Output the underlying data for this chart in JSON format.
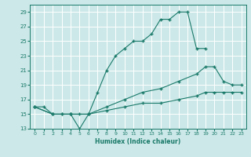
{
  "xlabel": "Humidex (Indice chaleur)",
  "bg_color": "#cce8e8",
  "grid_color": "#ffffff",
  "line_color": "#1a7a6a",
  "xlim": [
    -0.5,
    23.5
  ],
  "ylim": [
    13,
    30
  ],
  "yticks": [
    13,
    15,
    17,
    19,
    21,
    23,
    25,
    27,
    29
  ],
  "xticks": [
    0,
    1,
    2,
    3,
    4,
    5,
    6,
    7,
    8,
    9,
    10,
    11,
    12,
    13,
    14,
    15,
    16,
    17,
    18,
    19,
    20,
    21,
    22,
    23
  ],
  "line1_x": [
    0,
    1,
    2,
    3,
    4,
    5,
    6,
    7,
    8,
    9,
    10,
    11,
    12,
    13,
    14,
    15,
    16,
    17,
    18,
    19
  ],
  "line1_y": [
    16,
    16,
    15,
    15,
    15,
    13,
    15,
    18,
    21,
    23,
    24,
    25,
    25,
    26,
    28,
    28,
    29,
    29,
    24,
    24
  ],
  "line2_x": [
    0,
    2,
    3,
    4,
    5,
    6,
    8,
    10,
    12,
    14,
    16,
    18,
    19,
    20,
    21,
    22,
    23
  ],
  "line2_y": [
    16,
    15,
    15,
    15,
    15,
    15,
    16,
    17,
    18,
    18.5,
    19.5,
    20.5,
    21.5,
    21.5,
    19.5,
    19,
    19
  ],
  "line3_x": [
    0,
    2,
    4,
    6,
    8,
    10,
    12,
    14,
    16,
    18,
    19,
    20,
    21,
    22,
    23
  ],
  "line3_y": [
    16,
    15,
    15,
    15,
    15.5,
    16,
    16.5,
    16.5,
    17,
    17.5,
    18,
    18,
    18,
    18,
    18
  ]
}
